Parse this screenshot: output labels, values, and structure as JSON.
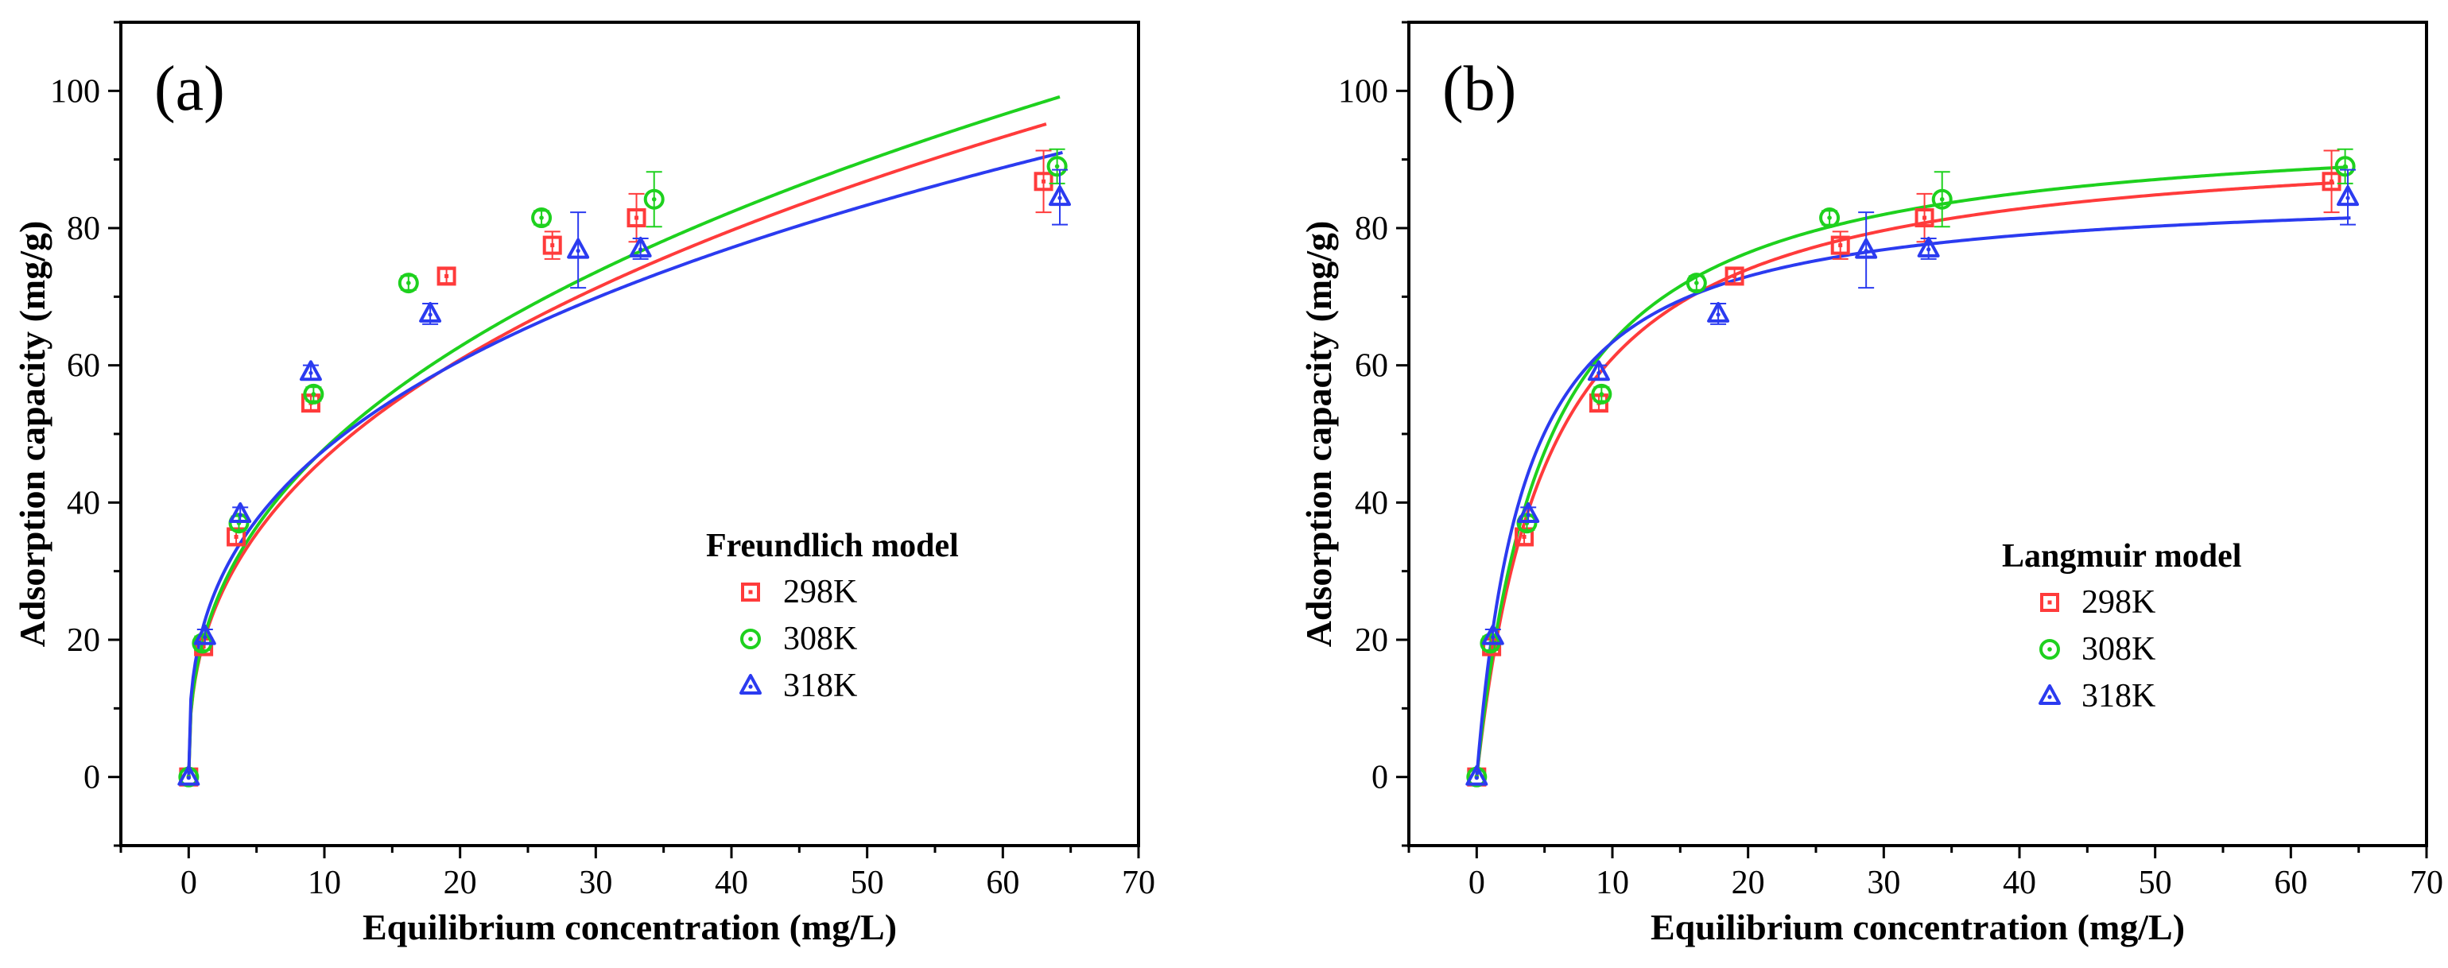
{
  "chart_data": [
    {
      "type": "scatter",
      "panel_label": "(a)",
      "xlabel": "Equilibrium concentration (mg/L)",
      "ylabel": "Adsorption capacity (mg/g)",
      "xlim": [
        -5,
        70
      ],
      "ylim": [
        -10,
        110
      ],
      "xticks": [
        0,
        10,
        20,
        30,
        40,
        50,
        60,
        70
      ],
      "yticks": [
        0,
        20,
        40,
        60,
        80,
        100
      ],
      "legend_title": "Freundlich model",
      "legend_position": "center-right",
      "fit_model": "freundlich",
      "series": [
        {
          "name": "298K",
          "color": "#ff3b3b",
          "marker": "square",
          "x": [
            0,
            1.1,
            3.5,
            9.0,
            19.0,
            26.8,
            33.0,
            63.0
          ],
          "y": [
            0,
            19.0,
            35.0,
            54.5,
            73.0,
            77.5,
            81.5,
            86.8
          ],
          "err": [
            0,
            1.0,
            1.0,
            1.0,
            1.0,
            2.0,
            3.5,
            4.5
          ],
          "fit": {
            "K": 18.96,
            "n": 2.57
          }
        },
        {
          "name": "308K",
          "color": "#1ed11e",
          "marker": "circle",
          "x": [
            0,
            1.0,
            3.7,
            9.2,
            16.2,
            26.0,
            34.3,
            64.0
          ],
          "y": [
            0,
            19.5,
            37.0,
            55.8,
            72.0,
            81.5,
            84.2,
            89.0
          ],
          "err": [
            0,
            1.0,
            1.0,
            1.0,
            1.0,
            1.0,
            4.0,
            2.5
          ],
          "fit": {
            "K": 19.38,
            "n": 2.55
          }
        },
        {
          "name": "318K",
          "color": "#2b3bf0",
          "marker": "triangle",
          "x": [
            0,
            1.2,
            3.8,
            9.0,
            17.8,
            28.7,
            33.3,
            64.2
          ],
          "y": [
            0,
            20.5,
            38.3,
            59.0,
            67.5,
            76.8,
            77.0,
            84.5
          ],
          "err": [
            0,
            1.0,
            1.0,
            1.0,
            1.5,
            5.5,
            1.5,
            4.0
          ],
          "fit": {
            "K": 21.43,
            "n": 2.88
          }
        }
      ]
    },
    {
      "type": "scatter",
      "panel_label": "(b)",
      "xlabel": "Equilibrium concentration (mg/L)",
      "ylabel": "Adsorption capacity (mg/g)",
      "xlim": [
        -5,
        70
      ],
      "ylim": [
        -10,
        110
      ],
      "xticks": [
        0,
        10,
        20,
        30,
        40,
        50,
        60,
        70
      ],
      "yticks": [
        0,
        20,
        40,
        60,
        80,
        100
      ],
      "legend_title": "Langmuir model",
      "legend_position": "center-right",
      "fit_model": "langmuir",
      "series": [
        {
          "name": "298K",
          "color": "#ff3b3b",
          "marker": "square",
          "x": [
            0,
            1.1,
            3.5,
            9.0,
            19.0,
            26.8,
            33.0,
            63.0
          ],
          "y": [
            0,
            19.0,
            35.0,
            54.5,
            73.0,
            77.5,
            81.5,
            86.8
          ],
          "err": [
            0,
            1.0,
            1.0,
            1.0,
            1.0,
            2.0,
            3.5,
            4.5
          ],
          "fit": {
            "qm": 94.0,
            "KL": 0.185
          }
        },
        {
          "name": "308K",
          "color": "#1ed11e",
          "marker": "circle",
          "x": [
            0,
            1.0,
            3.7,
            9.2,
            16.2,
            26.0,
            34.3,
            64.0
          ],
          "y": [
            0,
            19.5,
            37.0,
            55.8,
            72.0,
            81.5,
            84.2,
            89.0
          ],
          "err": [
            0,
            1.0,
            1.0,
            1.0,
            1.0,
            1.0,
            4.0,
            2.5
          ],
          "fit": {
            "qm": 96.0,
            "KL": 0.195
          }
        },
        {
          "name": "318K",
          "color": "#2b3bf0",
          "marker": "triangle",
          "x": [
            0,
            1.2,
            3.8,
            9.0,
            17.8,
            28.7,
            33.3,
            64.2
          ],
          "y": [
            0,
            20.5,
            38.3,
            59.0,
            67.5,
            76.8,
            77.0,
            84.5
          ],
          "err": [
            0,
            1.0,
            1.0,
            1.0,
            1.5,
            5.5,
            1.5,
            4.0
          ],
          "fit": {
            "qm": 86.0,
            "KL": 0.28
          }
        }
      ]
    }
  ]
}
